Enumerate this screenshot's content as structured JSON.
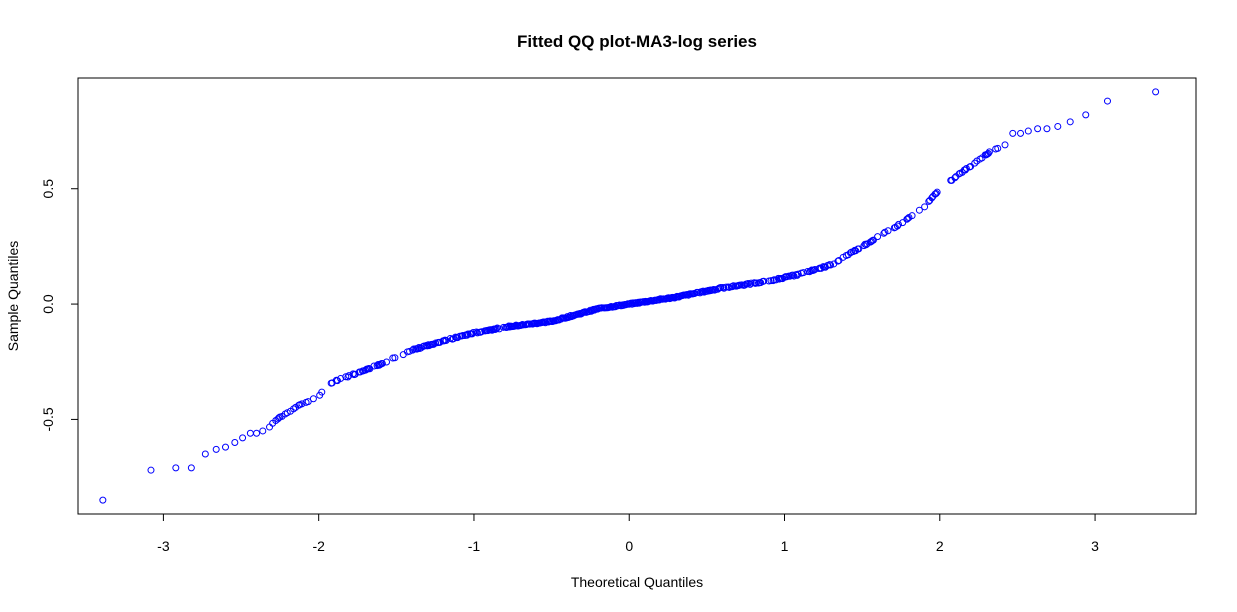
{
  "chart_data": {
    "type": "scatter",
    "title": "Fitted QQ plot-MA3-log series",
    "xlabel": "Theoretical Quantiles",
    "ylabel": "Sample Quantiles",
    "xlim": [
      -3.55,
      3.65
    ],
    "ylim": [
      -0.91,
      0.98
    ],
    "xticks": [
      -3,
      -2,
      -1,
      0,
      1,
      2,
      3
    ],
    "yticks": [
      -0.5,
      0.0,
      0.5
    ],
    "ytick_labels": [
      "-0.5",
      "0.0",
      "0.5"
    ],
    "grid": false,
    "point_color": "#0000ff",
    "marker": "open-circle",
    "tail_points": [
      {
        "x": -3.39,
        "y": -0.85
      },
      {
        "x": -3.08,
        "y": -0.72
      },
      {
        "x": -2.92,
        "y": -0.71
      },
      {
        "x": -2.82,
        "y": -0.71
      },
      {
        "x": -2.73,
        "y": -0.65
      },
      {
        "x": -2.66,
        "y": -0.63
      },
      {
        "x": -2.6,
        "y": -0.62
      },
      {
        "x": -2.54,
        "y": -0.6
      },
      {
        "x": -2.49,
        "y": -0.58
      },
      {
        "x": -2.44,
        "y": -0.56
      },
      {
        "x": -2.4,
        "y": -0.56
      },
      {
        "x": -2.36,
        "y": -0.55
      },
      {
        "x": 2.42,
        "y": 0.69
      },
      {
        "x": 2.47,
        "y": 0.74
      },
      {
        "x": 2.52,
        "y": 0.74
      },
      {
        "x": 2.57,
        "y": 0.75
      },
      {
        "x": 2.63,
        "y": 0.76
      },
      {
        "x": 2.69,
        "y": 0.76
      },
      {
        "x": 2.76,
        "y": 0.77
      },
      {
        "x": 2.84,
        "y": 0.79
      },
      {
        "x": 2.94,
        "y": 0.82
      },
      {
        "x": 3.08,
        "y": 0.88
      },
      {
        "x": 3.39,
        "y": 0.92
      }
    ],
    "body_curve": [
      {
        "x": -2.33,
        "y": -0.54
      },
      {
        "x": -2.25,
        "y": -0.49
      },
      {
        "x": -2.1,
        "y": -0.43
      },
      {
        "x": -2.0,
        "y": -0.4
      },
      {
        "x": -1.95,
        "y": -0.35
      },
      {
        "x": -1.8,
        "y": -0.31
      },
      {
        "x": -1.6,
        "y": -0.26
      },
      {
        "x": -1.4,
        "y": -0.2
      },
      {
        "x": -1.2,
        "y": -0.16
      },
      {
        "x": -1.0,
        "y": -0.125
      },
      {
        "x": -0.8,
        "y": -0.1
      },
      {
        "x": -0.5,
        "y": -0.075
      },
      {
        "x": -0.2,
        "y": -0.02
      },
      {
        "x": 0.0,
        "y": 0.0
      },
      {
        "x": 0.3,
        "y": 0.03
      },
      {
        "x": 0.6,
        "y": 0.07
      },
      {
        "x": 0.9,
        "y": 0.1
      },
      {
        "x": 1.1,
        "y": 0.13
      },
      {
        "x": 1.3,
        "y": 0.17
      },
      {
        "x": 1.45,
        "y": 0.23
      },
      {
        "x": 1.6,
        "y": 0.29
      },
      {
        "x": 1.75,
        "y": 0.35
      },
      {
        "x": 1.9,
        "y": 0.42
      },
      {
        "x": 2.0,
        "y": 0.5
      },
      {
        "x": 2.1,
        "y": 0.55
      },
      {
        "x": 2.2,
        "y": 0.6
      },
      {
        "x": 2.3,
        "y": 0.65
      },
      {
        "x": 2.38,
        "y": 0.68
      }
    ]
  }
}
